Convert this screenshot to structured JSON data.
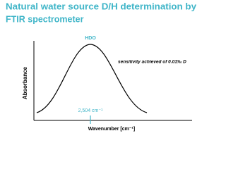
{
  "title": [
    "Natural water source D/H determination by",
    "FTIR spectrometer"
  ],
  "peak_label": "HDO",
  "annotation": "sensitivity achieved of 0.01‰ D",
  "y_axis_label": "Absorbance",
  "x_marker_label": "2,504 cm⁻¹",
  "x_axis_label": "Wavenumber [cm⁻¹]"
}
